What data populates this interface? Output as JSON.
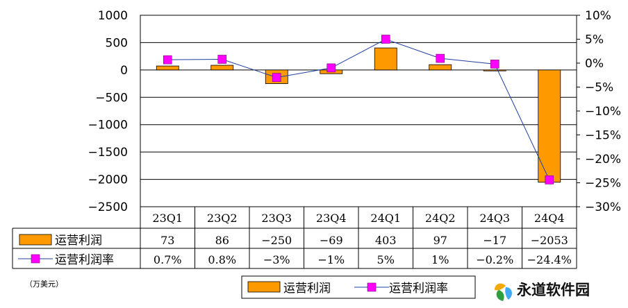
{
  "chart_data": {
    "type": "bar",
    "categories": [
      "23Q1",
      "23Q2",
      "23Q3",
      "23Q4",
      "24Q1",
      "24Q2",
      "24Q3",
      "24Q4"
    ],
    "series": [
      {
        "name": "运营利润",
        "kind": "bar",
        "axis": "left",
        "color": "#FF9900",
        "values": [
          73,
          86,
          -250,
          -69,
          403,
          97,
          -17,
          -2053
        ],
        "labels": [
          "73",
          "86",
          "-250",
          "-69",
          "403",
          "97",
          "-17",
          "-2053"
        ]
      },
      {
        "name": "运营利润率",
        "kind": "line",
        "axis": "right",
        "line_color": "#1F3F9F",
        "marker_color": "#FF00FF",
        "values": [
          0.7,
          0.8,
          -3,
          -1,
          5,
          1,
          -0.2,
          -24.4
        ],
        "labels": [
          "0.7%",
          "0.8%",
          "-3%",
          "-1%",
          "5%",
          "1%",
          "-0.2%",
          "-24.4%"
        ]
      }
    ],
    "y_left": {
      "ylim": [
        -2500,
        1000
      ],
      "ticks": [
        1000,
        500,
        0,
        -500,
        -1000,
        -1500,
        -2000,
        -2500
      ],
      "tick_labels": [
        "1000",
        "500",
        "0",
        "-500",
        "-1000",
        "-1500",
        "-2000",
        "-2500"
      ]
    },
    "y_right": {
      "ylim": [
        -30,
        10
      ],
      "ticks": [
        10,
        5,
        0,
        -5,
        -10,
        -15,
        -20,
        -25,
        -30
      ],
      "tick_labels": [
        "10%",
        "5%",
        "0%",
        "-5%",
        "-10%",
        "-15%",
        "-20%",
        "-25%",
        "-30%"
      ]
    },
    "grid": true,
    "data_table": true,
    "legend_position": "bottom-right",
    "unit_note": "（万美元）"
  },
  "legend": {
    "bar_label": "运营利润",
    "line_label": "运营利润率"
  },
  "watermark": {
    "text": "永道软件园",
    "colors": [
      "#F5A800",
      "#2E9E3E",
      "#3FA9F5"
    ]
  }
}
